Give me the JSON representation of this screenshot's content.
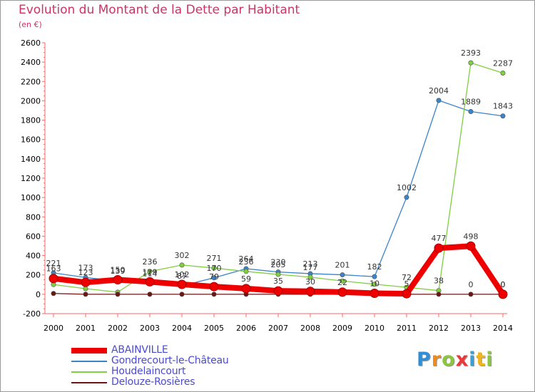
{
  "title": "Evolution du Montant de la Dette par Habitant",
  "subtitle": "(en €)",
  "logo": {
    "text": "Proxiti",
    "colors": [
      "#2e8fd6",
      "#f08a1c",
      "#8cc63f",
      "#e83a3a",
      "#3aa0d6",
      "#f0b41c",
      "#8cc63f"
    ]
  },
  "chart_data": {
    "type": "line",
    "xlabel": "",
    "ylabel": "",
    "x": [
      2000,
      2001,
      2002,
      2003,
      2004,
      2005,
      2006,
      2007,
      2008,
      2009,
      2010,
      2011,
      2012,
      2013,
      2014
    ],
    "ylim": [
      -200,
      2600
    ],
    "yticks": [
      -200,
      0,
      200,
      400,
      600,
      800,
      1000,
      1200,
      1400,
      1600,
      1800,
      2000,
      2200,
      2400,
      2600
    ],
    "grid": false,
    "legend_position": "bottom-left",
    "series": [
      {
        "name": "ABAINVILLE",
        "color": "#ee0000",
        "values": [
          163,
          123,
          150,
          129,
          102,
          79,
          59,
          35,
          30,
          22,
          10,
          5,
          477,
          498,
          0
        ]
      },
      {
        "name": "Gondrecourt-le-Château",
        "color": "#3b84c8",
        "values": [
          221,
          173,
          139,
          114,
          87,
          170,
          264,
          230,
          213,
          201,
          182,
          1002,
          2004,
          1889,
          1843
        ]
      },
      {
        "name": "Houdelaincourt",
        "color": "#7fcf3f",
        "values": [
          100,
          58,
          22,
          236,
          302,
          271,
          236,
          205,
          177,
          137,
          104,
          72,
          38,
          2393,
          2287
        ]
      },
      {
        "name": "Delouze-Rosières",
        "color": "#6b1515",
        "values": [
          8,
          0,
          0,
          0,
          0,
          0,
          0,
          0,
          0,
          0,
          0,
          0,
          0,
          0,
          0
        ]
      }
    ],
    "point_labels": [
      {
        "series": 0,
        "labels": [
          "163",
          "123",
          "150",
          "129",
          "102",
          "79",
          "59",
          "35",
          "30",
          "22",
          "10",
          "5",
          "477",
          "498",
          "0"
        ]
      },
      {
        "series": 1,
        "labels": [
          "221",
          "173",
          "139",
          "114",
          "87",
          "170",
          "264",
          "230",
          "213",
          "201",
          "182",
          "1002",
          "2004",
          "1889",
          "1843"
        ]
      },
      {
        "series": 2,
        "labels": [
          "",
          "",
          "",
          "236",
          "302",
          "271",
          "236",
          "205",
          "177",
          "",
          "",
          "72",
          "38",
          "2393",
          "2287"
        ]
      },
      {
        "series": 3,
        "labels": [
          "",
          "",
          "",
          "",
          "",
          "",
          "",
          "",
          "",
          "",
          "",
          "",
          "",
          "0",
          "0"
        ]
      }
    ]
  }
}
